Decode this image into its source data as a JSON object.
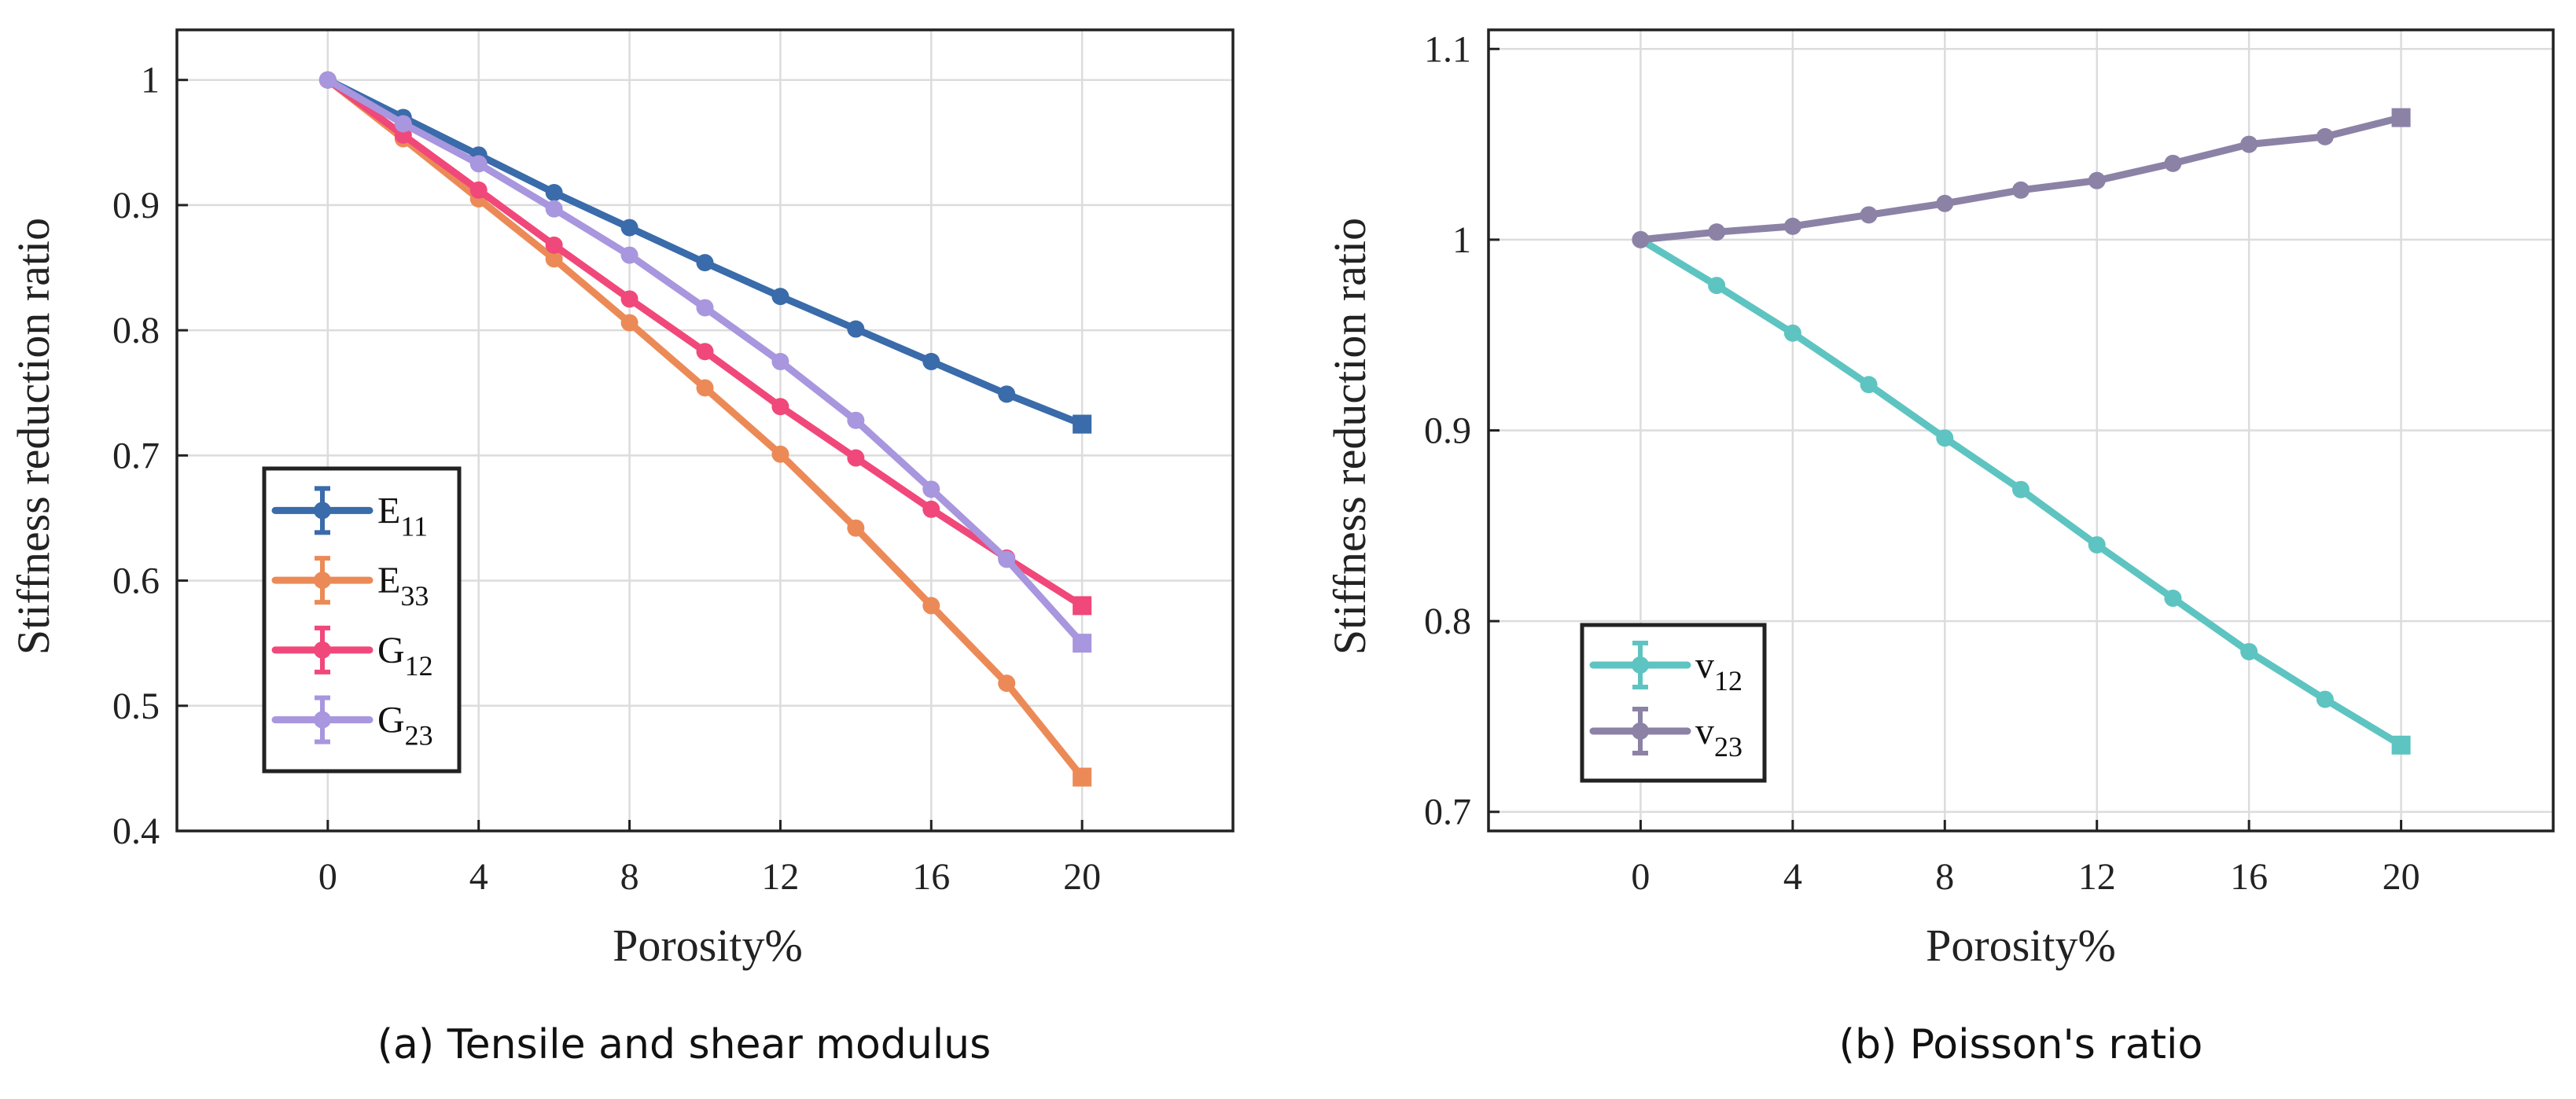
{
  "chart_data": [
    {
      "type": "line",
      "title": "",
      "caption": "(a) Tensile and shear modulus",
      "xlabel": "Porosity%",
      "ylabel": "Stiffness reduction ratio",
      "xlim": [
        -4,
        24
      ],
      "ylim": [
        0.4,
        1.04
      ],
      "xticks": [
        0,
        4,
        8,
        12,
        16,
        20
      ],
      "xtick_labels": [
        "0",
        "4",
        "8",
        "12",
        "16",
        "20"
      ],
      "yticks": [
        0.4,
        0.5,
        0.6,
        0.7,
        0.8,
        0.9,
        1
      ],
      "ytick_labels": [
        "0.4",
        "0.5",
        "0.6",
        "0.7",
        "0.8",
        "0.9",
        "1"
      ],
      "grid": true,
      "legend_position": "bottom-left",
      "x": [
        0,
        2,
        4,
        6,
        8,
        10,
        12,
        14,
        16,
        18,
        20
      ],
      "series": [
        {
          "name": "E11",
          "base": "E",
          "sub": "11",
          "color": "#3a6baa",
          "values": [
            1.0,
            0.97,
            0.94,
            0.91,
            0.882,
            0.854,
            0.827,
            0.801,
            0.775,
            0.749,
            0.725
          ]
        },
        {
          "name": "E33",
          "base": "E",
          "sub": "33",
          "color": "#ec8a57",
          "values": [
            1.0,
            0.953,
            0.905,
            0.857,
            0.806,
            0.754,
            0.701,
            0.642,
            0.58,
            0.518,
            0.443
          ]
        },
        {
          "name": "G12",
          "base": "G",
          "sub": "12",
          "color": "#f0487a",
          "values": [
            1.0,
            0.956,
            0.912,
            0.868,
            0.825,
            0.783,
            0.739,
            0.698,
            0.657,
            0.618,
            0.58
          ]
        },
        {
          "name": "G23",
          "base": "G",
          "sub": "23",
          "color": "#a896de",
          "values": [
            1.0,
            0.965,
            0.933,
            0.897,
            0.86,
            0.818,
            0.775,
            0.728,
            0.673,
            0.617,
            0.55
          ]
        }
      ]
    },
    {
      "type": "line",
      "title": "",
      "caption": "(b) Poisson's ratio",
      "xlabel": "Porosity%",
      "ylabel": "Stiffness reduction ratio",
      "xlim": [
        -4,
        24
      ],
      "ylim": [
        0.69,
        1.11
      ],
      "xticks": [
        0,
        4,
        8,
        12,
        16,
        20
      ],
      "xtick_labels": [
        "0",
        "4",
        "8",
        "12",
        "16",
        "20"
      ],
      "yticks": [
        0.7,
        0.8,
        0.9,
        1,
        1.1
      ],
      "ytick_labels": [
        "0.7",
        "0.8",
        "0.9",
        "1",
        "1.1"
      ],
      "grid": true,
      "legend_position": "bottom-left",
      "x": [
        0,
        2,
        4,
        6,
        8,
        10,
        12,
        14,
        16,
        18,
        20
      ],
      "series": [
        {
          "name": "v12",
          "base": "v",
          "sub": "12",
          "color": "#5ec4c1",
          "values": [
            1.0,
            0.976,
            0.951,
            0.924,
            0.896,
            0.869,
            0.84,
            0.812,
            0.784,
            0.759,
            0.735
          ]
        },
        {
          "name": "v23",
          "base": "v",
          "sub": "23",
          "color": "#8c82a6",
          "values": [
            1.0,
            1.004,
            1.007,
            1.013,
            1.019,
            1.026,
            1.031,
            1.04,
            1.05,
            1.054,
            1.064
          ]
        }
      ]
    }
  ]
}
